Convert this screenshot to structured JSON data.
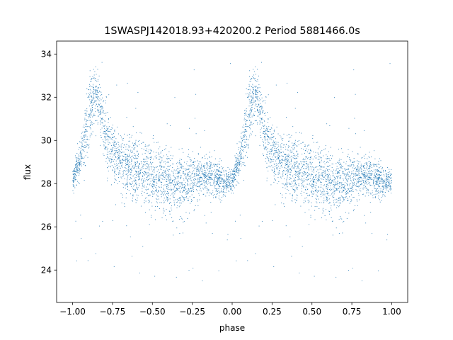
{
  "chart_data": {
    "type": "scatter",
    "title": "1SWASPJ142018.93+420200.2 Period 5881466.0s",
    "xlabel": "phase",
    "ylabel": "flux",
    "xlim": [
      -1.1,
      1.1
    ],
    "ylim": [
      22.5,
      34.6
    ],
    "xticks": [
      -1.0,
      -0.75,
      -0.5,
      -0.25,
      0.0,
      0.25,
      0.5,
      0.75,
      1.0
    ],
    "xtick_labels": [
      "−1.00",
      "−0.75",
      "−0.50",
      "−0.25",
      "0.00",
      "0.25",
      "0.50",
      "0.75",
      "1.00"
    ],
    "yticks": [
      24,
      26,
      28,
      30,
      32,
      34
    ],
    "ytick_labels": [
      "24",
      "26",
      "28",
      "30",
      "32",
      "34"
    ],
    "grid": false,
    "legend": "none",
    "marker_color": "#1f77b4",
    "series": [
      {
        "phase_profile": [
          {
            "x": 0.0,
            "y": 28.1,
            "spread": 0.45
          },
          {
            "x": 0.02,
            "y": 28.6,
            "spread": 0.6
          },
          {
            "x": 0.05,
            "y": 29.2,
            "spread": 0.7
          },
          {
            "x": 0.08,
            "y": 30.2,
            "spread": 1.2
          },
          {
            "x": 0.1,
            "y": 31.0,
            "spread": 1.5
          },
          {
            "x": 0.12,
            "y": 31.6,
            "spread": 1.4
          },
          {
            "x": 0.14,
            "y": 32.2,
            "spread": 1.0
          },
          {
            "x": 0.16,
            "y": 32.0,
            "spread": 1.0
          },
          {
            "x": 0.18,
            "y": 31.2,
            "spread": 1.3
          },
          {
            "x": 0.2,
            "y": 30.3,
            "spread": 1.4
          },
          {
            "x": 0.24,
            "y": 29.5,
            "spread": 1.3
          },
          {
            "x": 0.28,
            "y": 29.1,
            "spread": 1.2
          },
          {
            "x": 0.32,
            "y": 28.8,
            "spread": 1.3
          },
          {
            "x": 0.38,
            "y": 28.6,
            "spread": 1.3
          },
          {
            "x": 0.45,
            "y": 28.5,
            "spread": 1.35
          },
          {
            "x": 0.52,
            "y": 28.3,
            "spread": 1.4
          },
          {
            "x": 0.6,
            "y": 28.1,
            "spread": 1.35
          },
          {
            "x": 0.68,
            "y": 28.0,
            "spread": 1.3
          },
          {
            "x": 0.75,
            "y": 28.2,
            "spread": 1.1
          },
          {
            "x": 0.82,
            "y": 28.4,
            "spread": 0.9
          },
          {
            "x": 0.88,
            "y": 28.3,
            "spread": 0.8
          },
          {
            "x": 0.94,
            "y": 28.1,
            "spread": 0.7
          },
          {
            "x": 1.0,
            "y": 28.1,
            "spread": 0.45
          }
        ]
      }
    ]
  }
}
